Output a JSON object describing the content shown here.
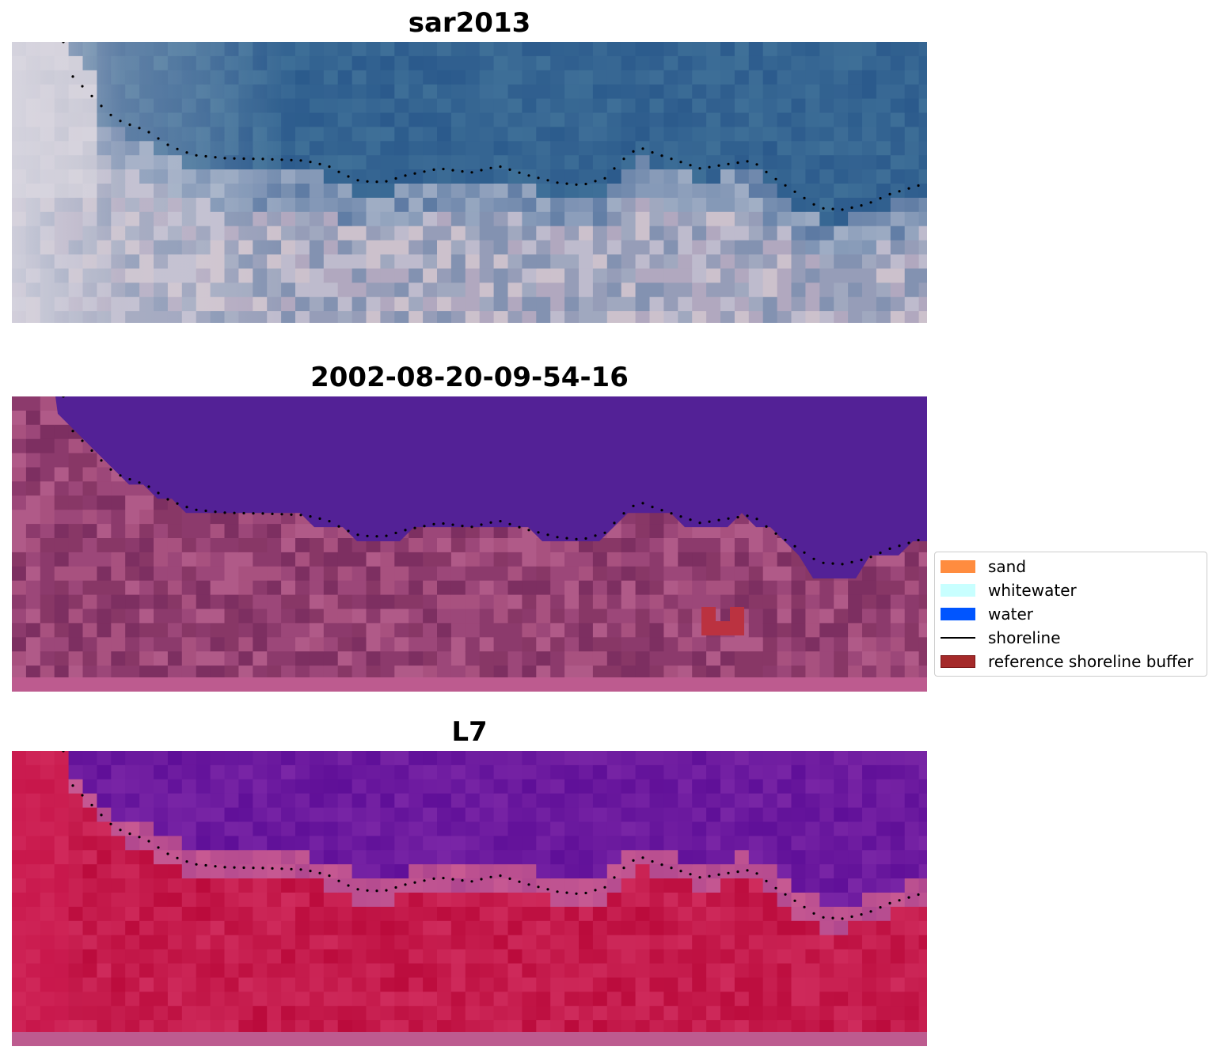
{
  "panels": [
    {
      "title": "sar2013",
      "style": "rgb"
    },
    {
      "title": "2002-08-20-09-54-16",
      "style": "classified"
    },
    {
      "title": "L7",
      "style": "index"
    }
  ],
  "legend": {
    "items": [
      {
        "label": "sand",
        "kind": "swatch",
        "color": "#ff8c3f"
      },
      {
        "label": "whitewater",
        "kind": "swatch",
        "color": "#c8ffff"
      },
      {
        "label": "water",
        "kind": "swatch",
        "color": "#0055ff"
      },
      {
        "label": "shoreline",
        "kind": "line",
        "color": "#000000"
      },
      {
        "label": "reference shoreline buffer",
        "kind": "swatch",
        "color": "#a52a2a"
      }
    ]
  }
}
